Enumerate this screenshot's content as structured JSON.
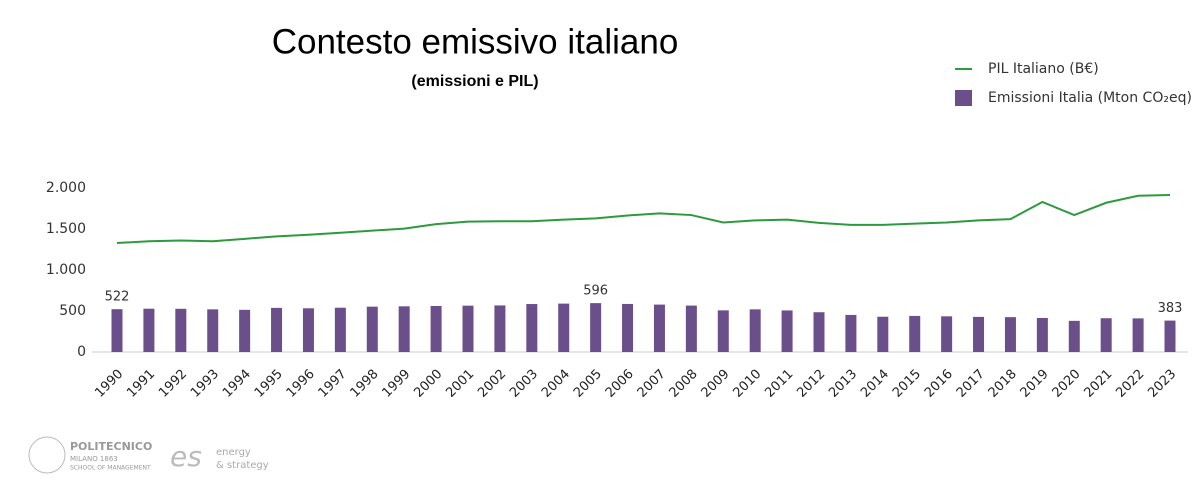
{
  "chart_data": {
    "type": "bar-line",
    "title": "Contesto emissivo italiano",
    "subtitle": "(emissioni e PIL)",
    "categories": [
      "1990",
      "1991",
      "1992",
      "1993",
      "1994",
      "1995",
      "1996",
      "1997",
      "1998",
      "1999",
      "2000",
      "2001",
      "2002",
      "2003",
      "2004",
      "2005",
      "2006",
      "2007",
      "2008",
      "2009",
      "2010",
      "2011",
      "2012",
      "2013",
      "2014",
      "2015",
      "2016",
      "2017",
      "2018",
      "2019",
      "2020",
      "2021",
      "2022",
      "2023"
    ],
    "series": [
      {
        "name": "PIL Italiano (B€)",
        "type": "line",
        "color": "#2e9a3e",
        "values": [
          1329,
          1350,
          1360,
          1350,
          1380,
          1410,
          1430,
          1455,
          1480,
          1505,
          1560,
          1590,
          1595,
          1595,
          1615,
          1630,
          1665,
          1690,
          1670,
          1580,
          1605,
          1615,
          1575,
          1550,
          1550,
          1565,
          1580,
          1605,
          1620,
          1830,
          1670,
          1820,
          1905,
          1915
        ]
      },
      {
        "name": "Emissioni Italia (Mton CO₂eq)",
        "type": "bar",
        "color": "#6b4f8b",
        "values": [
          522,
          528,
          527,
          520,
          514,
          538,
          533,
          540,
          553,
          557,
          561,
          565,
          568,
          585,
          590,
          596,
          586,
          578,
          566,
          508,
          520,
          507,
          485,
          452,
          430,
          440,
          435,
          428,
          425,
          415,
          380,
          412,
          410,
          383
        ],
        "value_labels": [
          "522",
          null,
          null,
          null,
          null,
          null,
          null,
          null,
          null,
          null,
          null,
          null,
          null,
          null,
          null,
          "596",
          null,
          null,
          null,
          null,
          null,
          null,
          null,
          null,
          null,
          null,
          null,
          null,
          null,
          null,
          null,
          null,
          null,
          "383"
        ]
      }
    ],
    "ylim": [
      0,
      2000
    ],
    "yticks": [
      0,
      500,
      {
        "value": 1000,
        "label": "1.000"
      },
      {
        "value": 1500,
        "label": "1.500"
      },
      {
        "value": 2000,
        "label": "2.000"
      }
    ],
    "legend": "top-right"
  },
  "footer": {
    "logo1": [
      "POLITECNICO",
      "MILANO 1863",
      "SCHOOL OF MANAGEMENT"
    ],
    "logo2": [
      "es",
      "energy",
      "& strategy"
    ]
  }
}
